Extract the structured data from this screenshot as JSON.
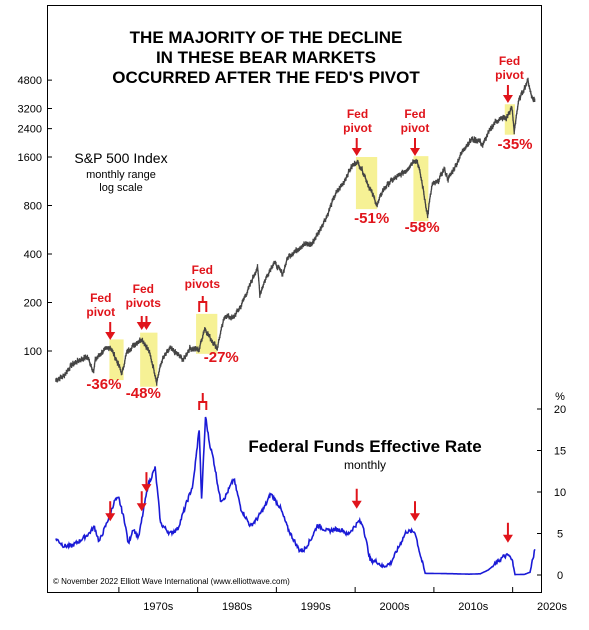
{
  "chart_data": [
    {
      "type": "line",
      "title": "THE MAJORITY OF THE DECLINE\nIN THESE BEAR MARKETS\nOCCURRED AFTER THE FED'S PIVOT",
      "series_label": "S&P 500 Index",
      "series_sublabels": [
        "monthly range",
        "log scale"
      ],
      "y_scale": "log",
      "yticks": [
        100,
        200,
        400,
        800,
        1600,
        2400,
        3200,
        4800
      ],
      "x_ticks": [
        "1970s",
        "1980s",
        "1990s",
        "2000s",
        "2010s",
        "2020s"
      ],
      "series": [
        {
          "values_points": [
            [
              1962,
              66
            ],
            [
              1963,
              70
            ],
            [
              1964,
              82
            ],
            [
              1965,
              88
            ],
            [
              1966,
              92
            ],
            [
              1966.8,
              74
            ],
            [
              1967,
              88
            ],
            [
              1968,
              100
            ],
            [
              1968.9,
              106
            ],
            [
              1969.5,
              92
            ],
            [
              1970.4,
              72
            ],
            [
              1971,
              98
            ],
            [
              1972,
              110
            ],
            [
              1972.9,
              119
            ],
            [
              1973.8,
              100
            ],
            [
              1974.8,
              64
            ],
            [
              1975.5,
              88
            ],
            [
              1976.5,
              104
            ],
            [
              1977.5,
              95
            ],
            [
              1978.2,
              88
            ],
            [
              1979,
              104
            ],
            [
              1980.2,
              102
            ],
            [
              1980.9,
              138
            ],
            [
              1981.7,
              118
            ],
            [
              1982.5,
              104
            ],
            [
              1983.5,
              166
            ],
            [
              1984.5,
              160
            ],
            [
              1985.5,
              190
            ],
            [
              1986.5,
              245
            ],
            [
              1987.6,
              330
            ],
            [
              1987.9,
              224
            ],
            [
              1988.5,
              270
            ],
            [
              1989.7,
              355
            ],
            [
              1990.3,
              325
            ],
            [
              1990.8,
              300
            ],
            [
              1991.5,
              385
            ],
            [
              1992.5,
              420
            ],
            [
              1993.5,
              460
            ],
            [
              1994.5,
              460
            ],
            [
              1995.5,
              560
            ],
            [
              1996.5,
              700
            ],
            [
              1997.5,
              940
            ],
            [
              1998.5,
              1100
            ],
            [
              1999.5,
              1380
            ],
            [
              2000.2,
              1500
            ],
            [
              2000.8,
              1360
            ],
            [
              2001.7,
              1060
            ],
            [
              2002.8,
              800
            ],
            [
              2003.5,
              990
            ],
            [
              2004.5,
              1130
            ],
            [
              2005.5,
              1220
            ],
            [
              2006.5,
              1320
            ],
            [
              2007.5,
              1530
            ],
            [
              2007.9,
              1500
            ],
            [
              2008.8,
              900
            ],
            [
              2009.2,
              680
            ],
            [
              2009.8,
              1080
            ],
            [
              2010.5,
              1120
            ],
            [
              2011.3,
              1350
            ],
            [
              2011.8,
              1160
            ],
            [
              2012.8,
              1420
            ],
            [
              2013.8,
              1800
            ],
            [
              2014.8,
              2060
            ],
            [
              2015.8,
              2020
            ],
            [
              2016.2,
              1880
            ],
            [
              2016.8,
              2200
            ],
            [
              2017.8,
              2650
            ],
            [
              2018.8,
              2800
            ],
            [
              2019.2,
              2780
            ],
            [
              2019.9,
              3230
            ],
            [
              2020.2,
              2300
            ],
            [
              2020.8,
              3600
            ],
            [
              2021.5,
              4300
            ],
            [
              2021.95,
              4780
            ],
            [
              2022.4,
              3800
            ],
            [
              2022.8,
              3600
            ]
          ]
        }
      ],
      "annotations": [
        {
          "label": "Fed\npivot",
          "pct": "-36%"
        },
        {
          "label": "Fed\npivots",
          "pct": "-48%"
        },
        {
          "label": "Fed\npivots",
          "pct": "-27%"
        },
        {
          "label": "Fed\npivot",
          "pct": "-51%"
        },
        {
          "label": "Fed\npivot",
          "pct": "-58%"
        },
        {
          "label": "Fed\npivot",
          "pct": "-35%"
        }
      ]
    },
    {
      "type": "line",
      "title": "Federal Funds Effective Rate",
      "subtitle": "monthly",
      "y_unit": "%",
      "yticks": [
        0,
        5,
        10,
        15,
        20
      ],
      "ylim": [
        0,
        20
      ],
      "series": [
        {
          "values_points": [
            [
              1962,
              4.4
            ],
            [
              1963,
              3.5
            ],
            [
              1964,
              3.5
            ],
            [
              1965,
              4.1
            ],
            [
              1966.2,
              5.0
            ],
            [
              1966.9,
              5.8
            ],
            [
              1967.5,
              4.0
            ],
            [
              1968.4,
              6.1
            ],
            [
              1969.5,
              9.0
            ],
            [
              1970.0,
              9.2
            ],
            [
              1970.8,
              6.2
            ],
            [
              1971.2,
              3.7
            ],
            [
              1971.8,
              5.6
            ],
            [
              1972.5,
              4.5
            ],
            [
              1973.7,
              10.8
            ],
            [
              1974.6,
              12.9
            ],
            [
              1975.3,
              6.2
            ],
            [
              1976.5,
              5.0
            ],
            [
              1977.5,
              5.6
            ],
            [
              1978.6,
              8.7
            ],
            [
              1979.4,
              10.8
            ],
            [
              1980.2,
              17.6
            ],
            [
              1980.5,
              9.0
            ],
            [
              1981.0,
              19.1
            ],
            [
              1981.5,
              15.9
            ],
            [
              1982.0,
              14.0
            ],
            [
              1982.9,
              9.0
            ],
            [
              1983.5,
              9.4
            ],
            [
              1984.6,
              11.6
            ],
            [
              1985.5,
              8.0
            ],
            [
              1986.7,
              5.9
            ],
            [
              1987.5,
              6.7
            ],
            [
              1988.5,
              8.2
            ],
            [
              1989.3,
              9.8
            ],
            [
              1990.5,
              8.1
            ],
            [
              1991.5,
              5.5
            ],
            [
              1992.9,
              3.0
            ],
            [
              1993.5,
              3.0
            ],
            [
              1994.5,
              4.5
            ],
            [
              1995.2,
              6.0
            ],
            [
              1996.5,
              5.3
            ],
            [
              1997.5,
              5.5
            ],
            [
              1998.5,
              5.4
            ],
            [
              1999.0,
              4.8
            ],
            [
              2000.5,
              6.5
            ],
            [
              2001.0,
              6.0
            ],
            [
              2001.9,
              1.8
            ],
            [
              2002.8,
              1.6
            ],
            [
              2003.5,
              1.0
            ],
            [
              2004.5,
              1.4
            ],
            [
              2005.5,
              3.3
            ],
            [
              2006.5,
              5.25
            ],
            [
              2007.6,
              5.2
            ],
            [
              2008.3,
              2.3
            ],
            [
              2008.9,
              0.2
            ],
            [
              2010.5,
              0.18
            ],
            [
              2012.5,
              0.15
            ],
            [
              2014.5,
              0.1
            ],
            [
              2015.9,
              0.15
            ],
            [
              2016.9,
              0.6
            ],
            [
              2017.9,
              1.4
            ],
            [
              2018.8,
              2.2
            ],
            [
              2019.5,
              2.4
            ],
            [
              2020.0,
              1.6
            ],
            [
              2020.3,
              0.05
            ],
            [
              2021.5,
              0.08
            ],
            [
              2022.2,
              0.33
            ],
            [
              2022.5,
              1.6
            ],
            [
              2022.83,
              3.1
            ]
          ]
        }
      ]
    }
  ],
  "copyright": "© November 2022 Elliott Wave International (www.elliottwave.com)",
  "colors": {
    "sp500_line": "#444444",
    "rate_line": "#1a1ad6",
    "annotation": "#e0141b",
    "highlight": "#f5f08a"
  }
}
